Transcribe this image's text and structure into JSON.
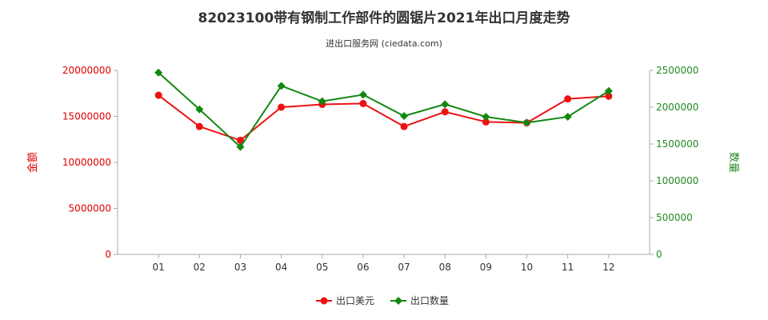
{
  "chart_data": {
    "type": "line",
    "title": "82023100带有钢制工作部件的圆锯片2021年出口月度走势",
    "subtitle": "进出口服务网 (ciedata.com)",
    "categories": [
      "01",
      "02",
      "03",
      "04",
      "05",
      "06",
      "07",
      "08",
      "09",
      "10",
      "11",
      "12"
    ],
    "y_left": {
      "label": "金额",
      "ylim": [
        0,
        20000000
      ],
      "ticks": [
        "0",
        "5000000",
        "10000000",
        "15000000",
        "20000000"
      ],
      "color": "#dd0000"
    },
    "y_right": {
      "label": "数量",
      "ylim": [
        0,
        2500000
      ],
      "ticks": [
        "0",
        "500000",
        "1000000",
        "1500000",
        "2000000",
        "2500000"
      ],
      "color": "#228822"
    },
    "series": [
      {
        "name": "出口美元",
        "axis": "left",
        "color": "#ee1111",
        "marker": "circle",
        "values": [
          17300000,
          13900000,
          12400000,
          16000000,
          16300000,
          16400000,
          13900000,
          15500000,
          14400000,
          14300000,
          16900000,
          17200000
        ]
      },
      {
        "name": "出口数量",
        "axis": "right",
        "color": "#118811",
        "marker": "diamond",
        "values": [
          2470000,
          1970000,
          1460000,
          2290000,
          2080000,
          2170000,
          1880000,
          2040000,
          1870000,
          1790000,
          1870000,
          2220000
        ]
      }
    ],
    "grid": false,
    "legend_position": "bottom-center"
  }
}
